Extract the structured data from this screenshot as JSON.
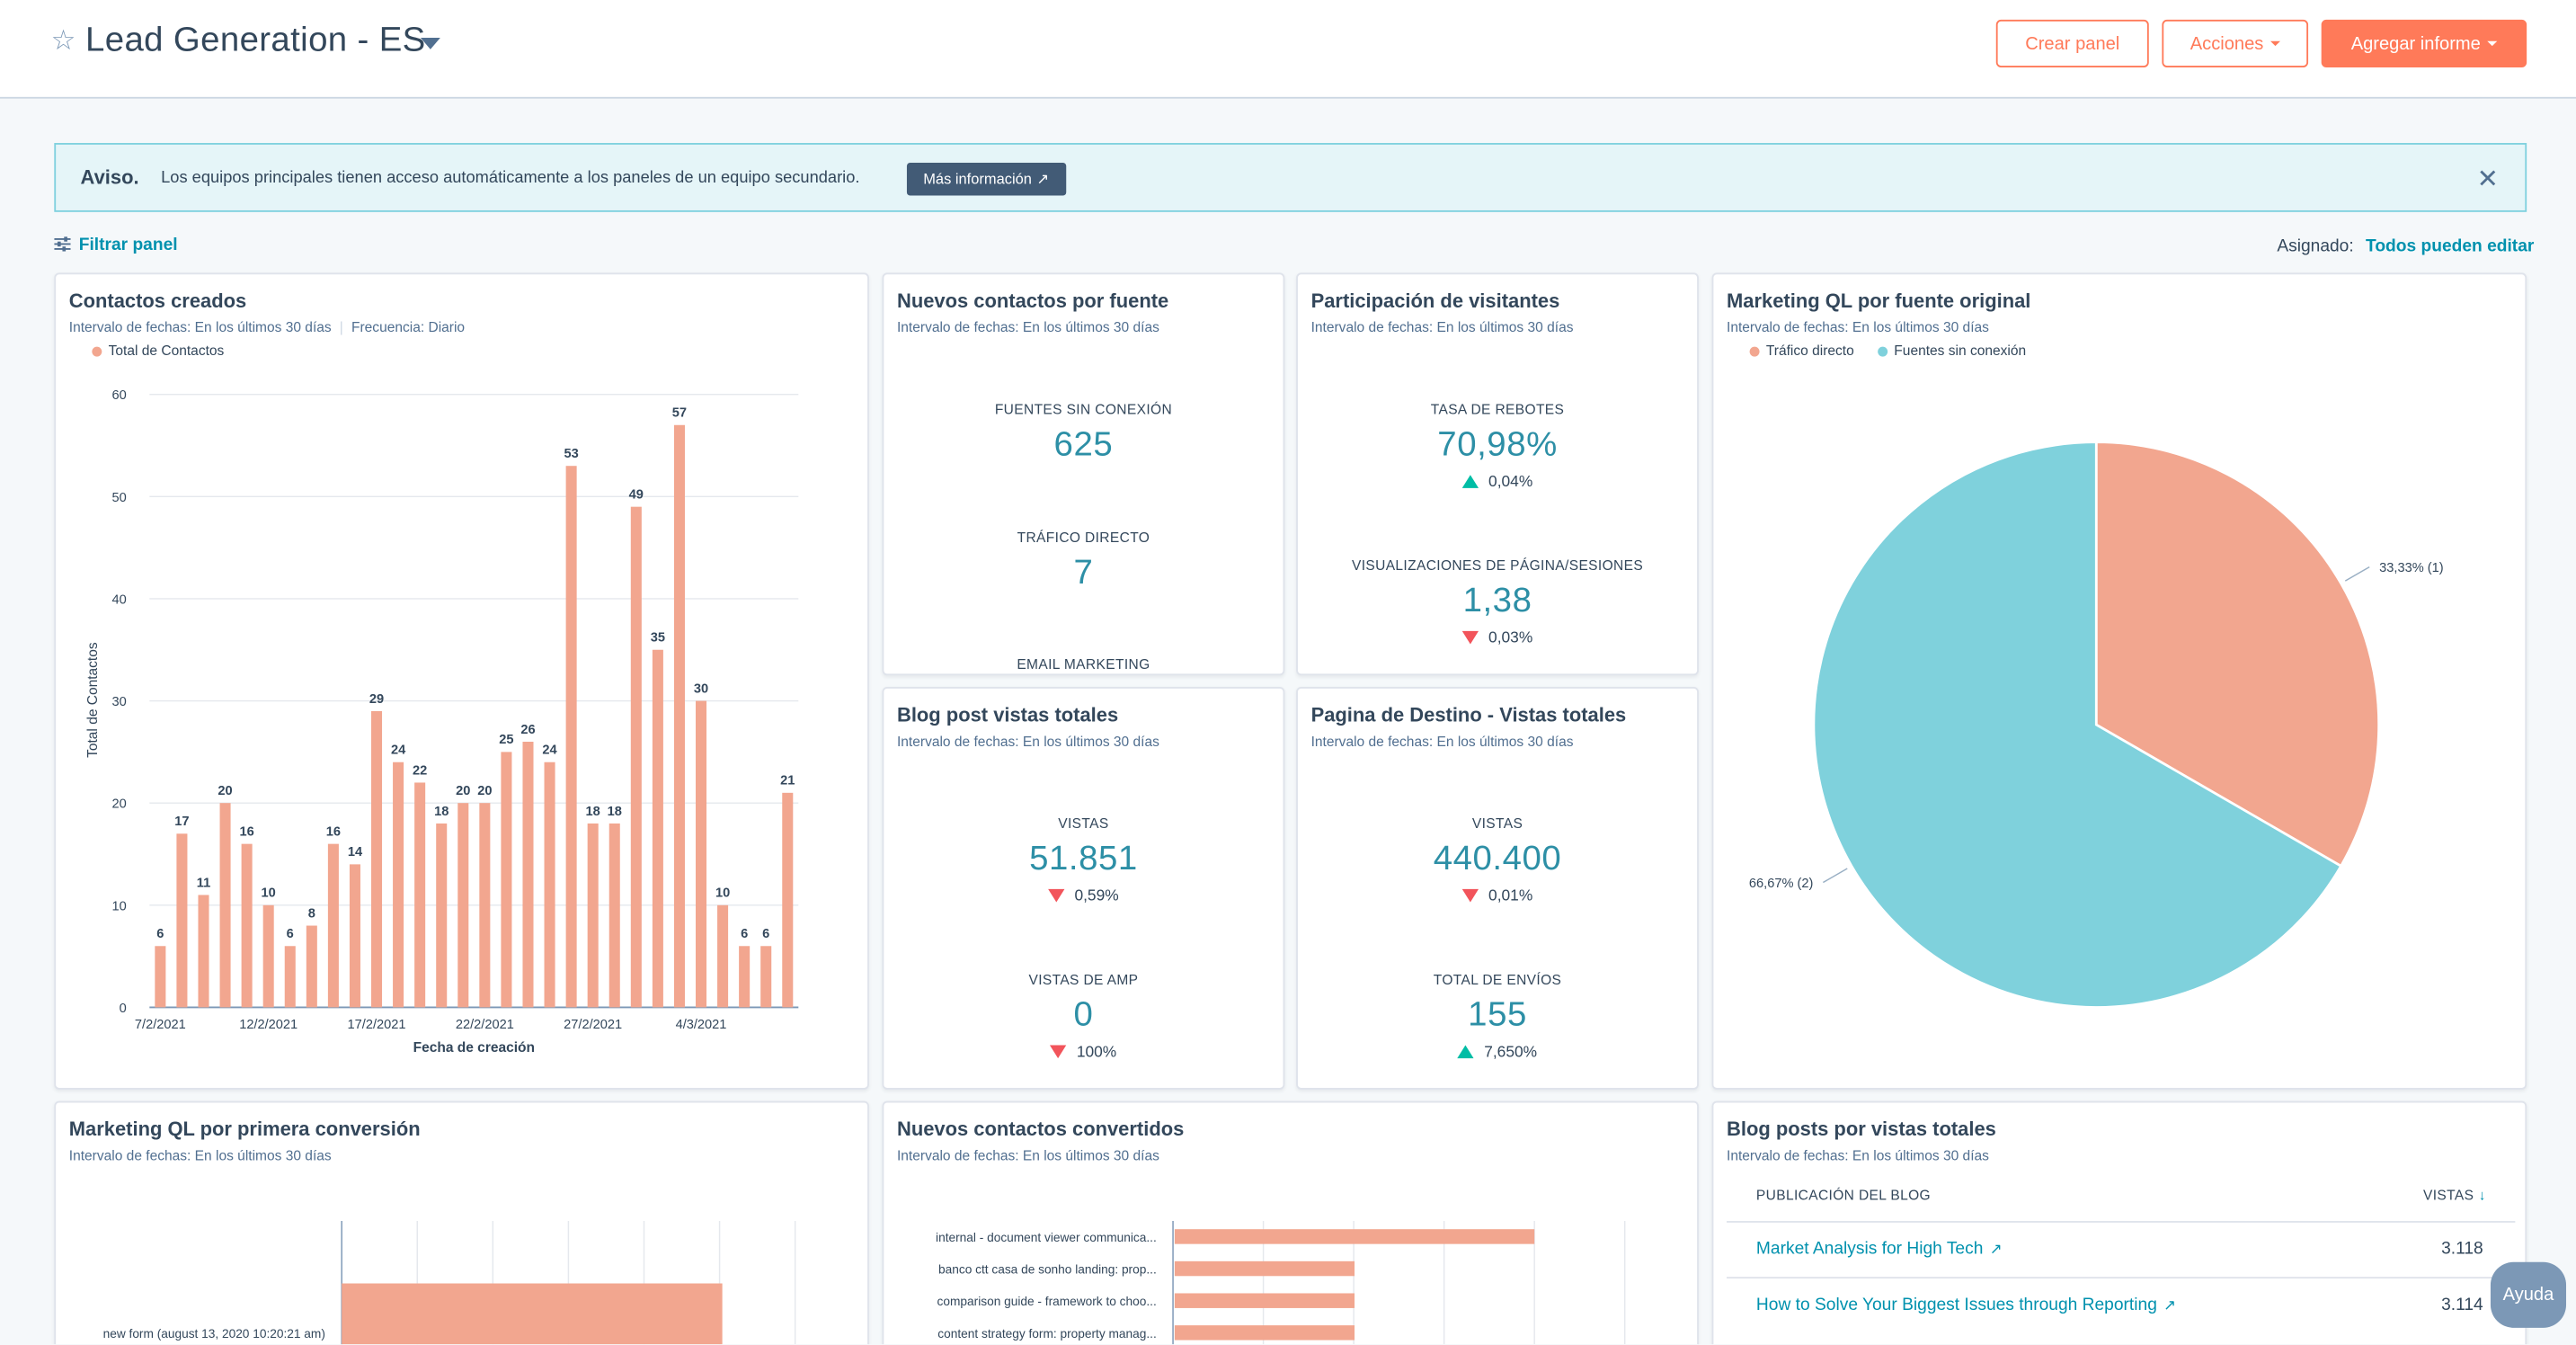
{
  "header": {
    "title": "Lead Generation - ES",
    "buttons": {
      "create": "Crear panel",
      "actions": "Acciones",
      "add_report": "Agregar informe"
    }
  },
  "alert": {
    "title": "Aviso.",
    "text": "Los equipos principales tienen acceso automáticamente a los paneles de un equipo secundario.",
    "button": "Más información"
  },
  "toolbar": {
    "filter": "Filtrar panel",
    "assigned_label": "Asignado:",
    "assigned_value": "Todos pueden editar"
  },
  "cards": {
    "contacts_created": {
      "title": "Contactos creados",
      "sub1": "Intervalo de fechas: En los últimos 30 días",
      "sub2": "Frecuencia: Diario",
      "legend": "Total de Contactos",
      "xlabel": "Fecha de creación",
      "ylabel": "Total de Contactos"
    },
    "new_by_source": {
      "title": "Nuevos contactos por fuente",
      "sub": "Intervalo de fechas: En los últimos 30 días",
      "kpis": [
        {
          "label": "FUENTES SIN CONEXIÓN",
          "value": "625"
        },
        {
          "label": "TRÁFICO DIRECTO",
          "value": "7"
        },
        {
          "label": "EMAIL MARKETING",
          "value": ""
        }
      ]
    },
    "visitors": {
      "title": "Participación de visitantes",
      "sub": "Intervalo de fechas: En los últimos 30 días",
      "kpis": [
        {
          "label": "TASA DE REBOTES",
          "value": "70,98%",
          "delta": "0,04%",
          "dir": "up"
        },
        {
          "label": "VISUALIZACIONES DE PÁGINA/SESIONES",
          "value": "1,38",
          "delta": "0,03%",
          "dir": "down"
        }
      ]
    },
    "blog_views": {
      "title": "Blog post vistas totales",
      "sub": "Intervalo de fechas: En los últimos 30 días",
      "kpis": [
        {
          "label": "VISTAS",
          "value": "51.851",
          "delta": "0,59%",
          "dir": "down"
        },
        {
          "label": "VISTAS DE AMP",
          "value": "0",
          "delta": "100%",
          "dir": "down"
        }
      ]
    },
    "landing": {
      "title": "Pagina de Destino - Vistas totales",
      "sub": "Intervalo de fechas: En los últimos 30 días",
      "kpis": [
        {
          "label": "VISTAS",
          "value": "440.400",
          "delta": "0,01%",
          "dir": "down"
        },
        {
          "label": "TOTAL DE ENVÍOS",
          "value": "155",
          "delta": "7,650%",
          "dir": "up"
        }
      ]
    },
    "mql_source": {
      "title": "Marketing QL por fuente original",
      "sub": "Intervalo de fechas: En los últimos 30 días",
      "legend": [
        "Tráfico directo",
        "Fuentes sin conexión"
      ]
    },
    "mql_first": {
      "title": "Marketing QL por primera conversión",
      "sub": "Intervalo de fechas: En los últimos 30 días"
    },
    "new_converted": {
      "title": "Nuevos contactos convertidos",
      "sub": "Intervalo de fechas: En los últimos 30 días"
    },
    "blog_table": {
      "title": "Blog posts por vistas totales",
      "sub": "Intervalo de fechas: En los últimos 30 días",
      "col1": "PUBLICACIÓN DEL BLOG",
      "col2": "VISTAS",
      "rows": [
        {
          "name": "Market Analysis for High Tech",
          "views": "3.118"
        },
        {
          "name": "How to Solve Your Biggest Issues through Reporting",
          "views": "3.114"
        }
      ]
    }
  },
  "help": "Ayuda",
  "colors": {
    "salmon": "#f2a68f",
    "teal": "#7fd1dc",
    "accent": "#ff7a59",
    "link": "#0091ae"
  },
  "chart_data": [
    {
      "type": "bar",
      "ylabel": "Total de Contactos",
      "xlabel": "Fecha de creación",
      "ylim": [
        0,
        60
      ],
      "yticks": [
        0,
        10,
        20,
        30,
        40,
        50,
        60
      ],
      "xticks": [
        "7/2/2021",
        "12/2/2021",
        "17/2/2021",
        "22/2/2021",
        "27/2/2021",
        "4/3/2021"
      ],
      "series": [
        {
          "name": "Total de Contactos",
          "values": [
            6,
            17,
            11,
            20,
            16,
            10,
            6,
            8,
            16,
            14,
            29,
            24,
            22,
            18,
            20,
            20,
            25,
            26,
            24,
            53,
            18,
            18,
            49,
            35,
            57,
            30,
            10,
            6,
            6,
            21
          ]
        }
      ],
      "grid": true,
      "legend": "top-left"
    },
    {
      "type": "pie",
      "categories": [
        "Tráfico directo",
        "Fuentes sin conexión"
      ],
      "values": [
        1,
        2
      ],
      "labels": [
        "33,33% (1)",
        "66,67% (2)"
      ],
      "legend": "top-left"
    },
    {
      "type": "bar",
      "orientation": "horizontal",
      "categories": [
        "new form (august 13, 2020 10:20:21 am)"
      ],
      "values": [
        1
      ]
    },
    {
      "type": "bar",
      "orientation": "horizontal",
      "categories": [
        "internal - document viewer communica...",
        "banco ctt casa de sonho landing: prop...",
        "comparison guide - framework to choo...",
        "content strategy form: property manag..."
      ],
      "values": [
        2,
        1,
        1,
        1
      ]
    }
  ]
}
